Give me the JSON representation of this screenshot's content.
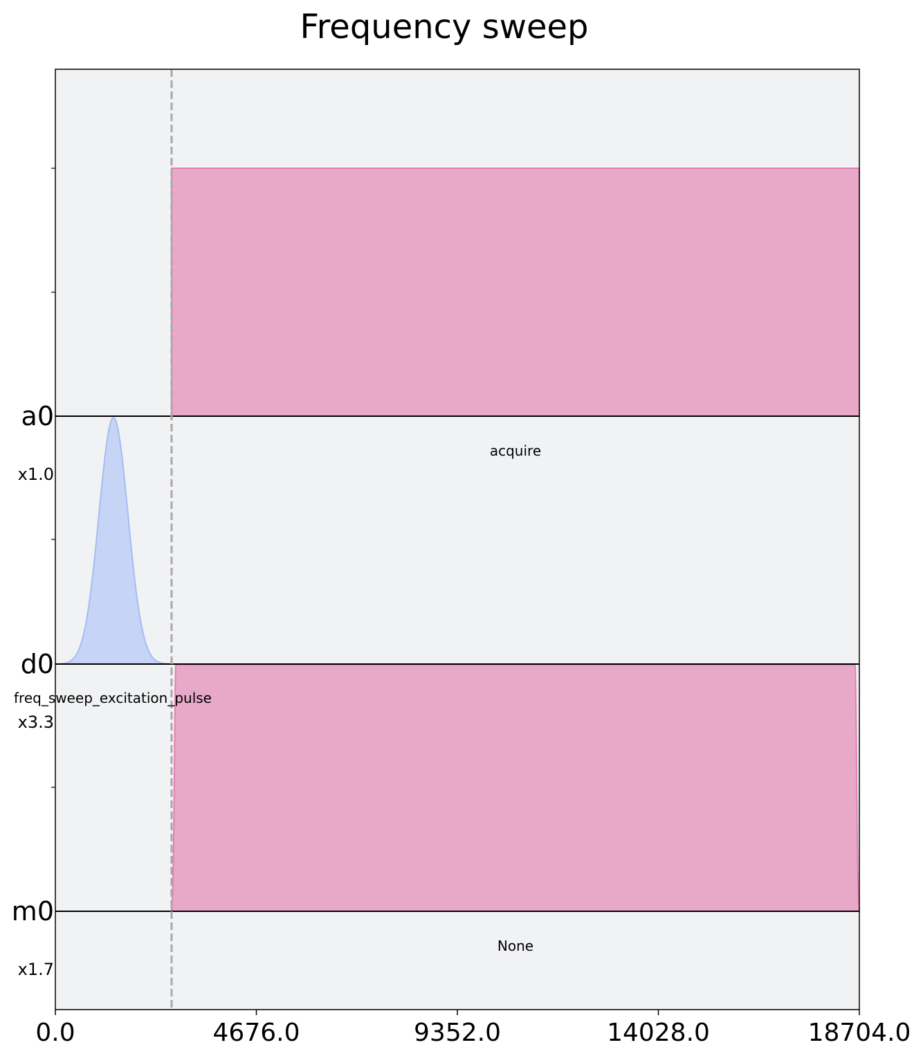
{
  "chart_data": {
    "type": "area",
    "title": "Frequency sweep",
    "xlabel": "",
    "ylabel": "",
    "xlim": [
      0,
      18704.0
    ],
    "x_ticks": [
      "0.0",
      "4676.0",
      "9352.0",
      "14028.0",
      "18704.0"
    ],
    "x_tick_values": [
      0,
      4676.0,
      9352.0,
      14028.0,
      18704.0
    ],
    "barrier_x": 2704,
    "grid": false,
    "legend": "none",
    "channels": [
      {
        "name": "a0",
        "scale": "",
        "instruction_label": "acquire",
        "color": "#e8a8c8",
        "edge_color": "#e47fb1",
        "waveform": {
          "kind": "box",
          "start": 2704,
          "end": 18704,
          "amplitude": 1.0
        }
      },
      {
        "name": "d0",
        "scale": "x1.0",
        "instruction_label": "freq_sweep_excitation_pulse",
        "color": "#c6d4f6",
        "edge_color": "#a4bdf5",
        "waveform": {
          "kind": "gaussian",
          "start": 0,
          "end": 2704,
          "center": 1352,
          "sigma": 338,
          "amplitude": 1.0
        }
      },
      {
        "name": "m0",
        "scale": "x3.3",
        "instruction_label": "None",
        "color": "#e8a8c8",
        "edge_color": "#e47fb1",
        "waveform": {
          "kind": "gaussian_square",
          "start": 2704,
          "end": 18704,
          "rise": 100,
          "amplitude": 1.0
        }
      },
      {
        "name": "",
        "scale": "x1.7",
        "instruction_label": "",
        "color": "#e8a8c8",
        "edge_color": "#e47fb1",
        "waveform": {
          "kind": "none"
        }
      }
    ],
    "colors": {
      "background": "#f1f2f4",
      "baseline": "#000000",
      "barrier": "#a8a8a8"
    }
  }
}
